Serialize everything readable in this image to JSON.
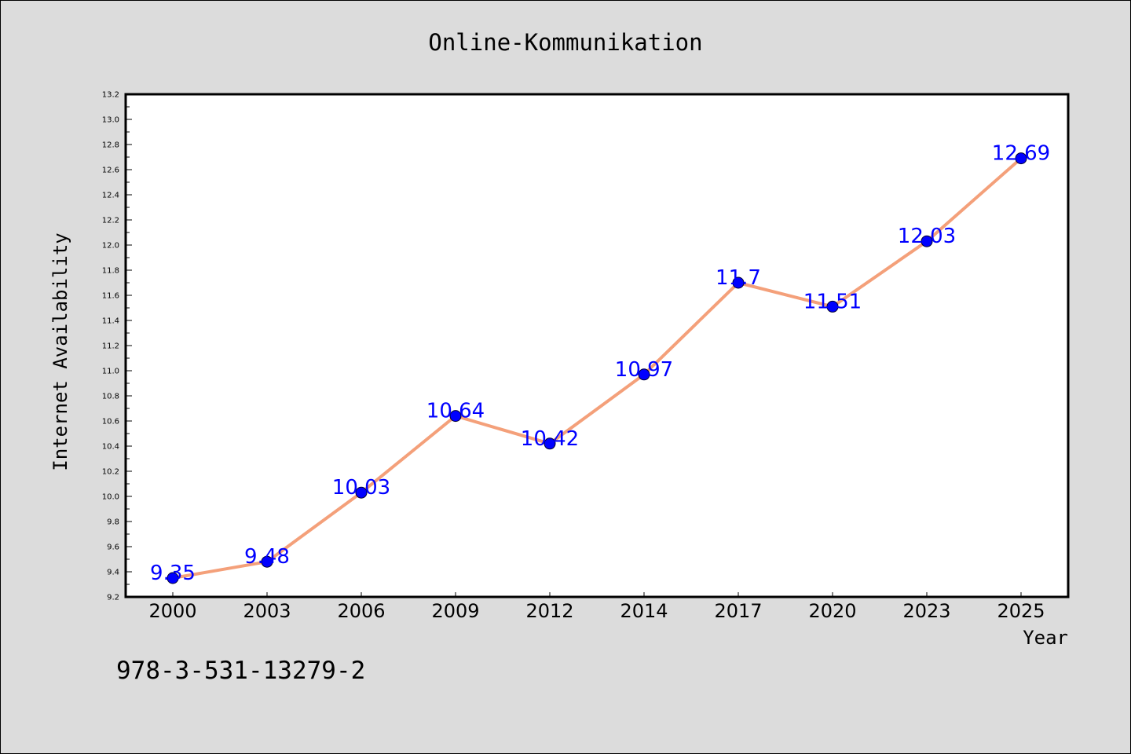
{
  "chart_data": {
    "type": "line",
    "title": "Online-Kommunikation",
    "xlabel": "Year",
    "ylabel": "Internet Availability",
    "categories": [
      "2000",
      "2003",
      "2006",
      "2009",
      "2012",
      "2014",
      "2017",
      "2020",
      "2023",
      "2025"
    ],
    "series": [
      {
        "values": [
          9.35,
          9.48,
          10.03,
          10.64,
          10.42,
          10.97,
          11.7,
          11.51,
          12.03,
          12.69
        ],
        "labels": [
          "9.35",
          "9.48",
          "10.03",
          "10.64",
          "10.42",
          "10.97",
          "11.7",
          "11.51",
          "12.03",
          "12.69"
        ],
        "line_color": "#f4a07a",
        "marker_color": "#0000ff"
      }
    ],
    "ylim": [
      9.2,
      13.2
    ],
    "yticks": [
      "9.2",
      "9.4",
      "9.6",
      "9.8",
      "10.0",
      "10.2",
      "10.4",
      "10.6",
      "10.8",
      "11.0",
      "11.2",
      "11.4",
      "11.6",
      "11.8",
      "12.0",
      "12.2",
      "12.4",
      "12.6",
      "12.8",
      "13.0",
      "13.2"
    ],
    "grid": false,
    "data_label_color": "#0000ff"
  },
  "footer": {
    "isbn": "978-3-531-13279-2"
  }
}
